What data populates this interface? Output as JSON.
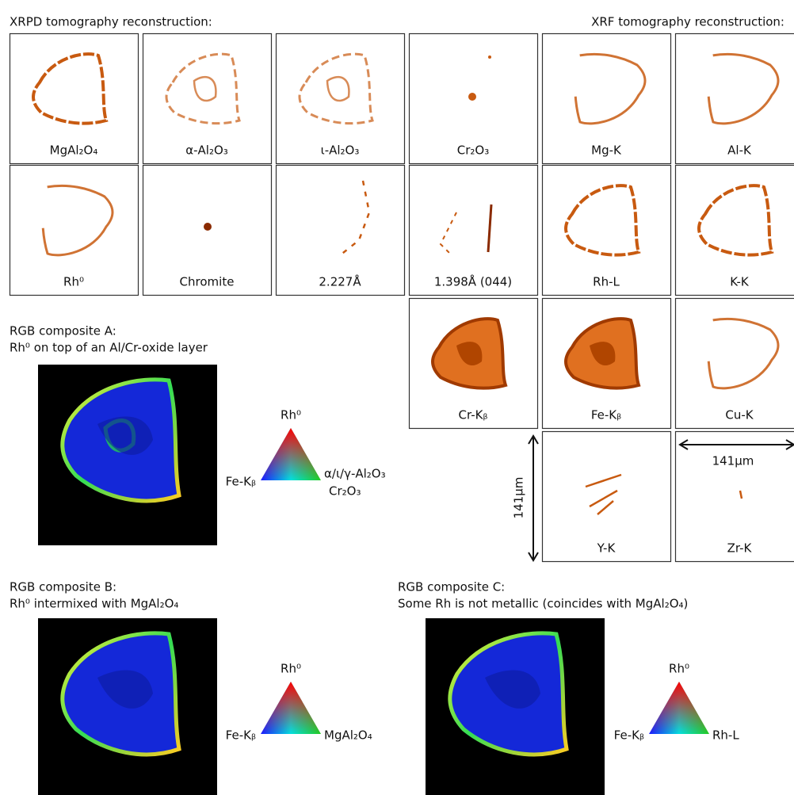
{
  "header": {
    "xrpd_title": "XRPD tomography reconstruction:",
    "xrf_title": "XRF tomography reconstruction:"
  },
  "panels": [
    {
      "label": "MgAl₂O₄"
    },
    {
      "label": "α-Al₂O₃"
    },
    {
      "label": "ι-Al₂O₃"
    },
    {
      "label": "Cr₂O₃"
    },
    {
      "label": "Mg-K"
    },
    {
      "label": "Al-K"
    },
    {
      "label": "Rh⁰"
    },
    {
      "label": "Chromite"
    },
    {
      "label": "2.227Å"
    },
    {
      "label": "1.398Å (044)"
    },
    {
      "label": "Rh-L"
    },
    {
      "label": "K-K"
    },
    {
      "label": "Cr-Kᵦ"
    },
    {
      "label": "Fe-Kᵦ"
    },
    {
      "label": "Cu-K"
    },
    {
      "label": "Y-K"
    },
    {
      "label": "Zr-K"
    }
  ],
  "scale_bars": {
    "vertical": "141μm",
    "horizontal": "141μm"
  },
  "composites": [
    {
      "title": "RGB composite A:",
      "subtitle": "Rh⁰ on top of an Al/Cr-oxide layer",
      "top": "Rh⁰",
      "left": "Fe-Kᵦ",
      "right": "α/ι/γ-Al₂O₃",
      "right2": "Cr₂O₃"
    },
    {
      "title": "RGB composite B:",
      "subtitle": "Rh⁰ intermixed with MgAl₂O₄",
      "top": "Rh⁰",
      "left": "Fe-Kᵦ",
      "right": "MgAl₂O₄"
    },
    {
      "title": "RGB composite C:",
      "subtitle": "Some Rh is not metallic (coincides with MgAl₂O₄)",
      "top": "Rh⁰",
      "left": "Fe-Kᵦ",
      "right": "Rh-L"
    }
  ]
}
